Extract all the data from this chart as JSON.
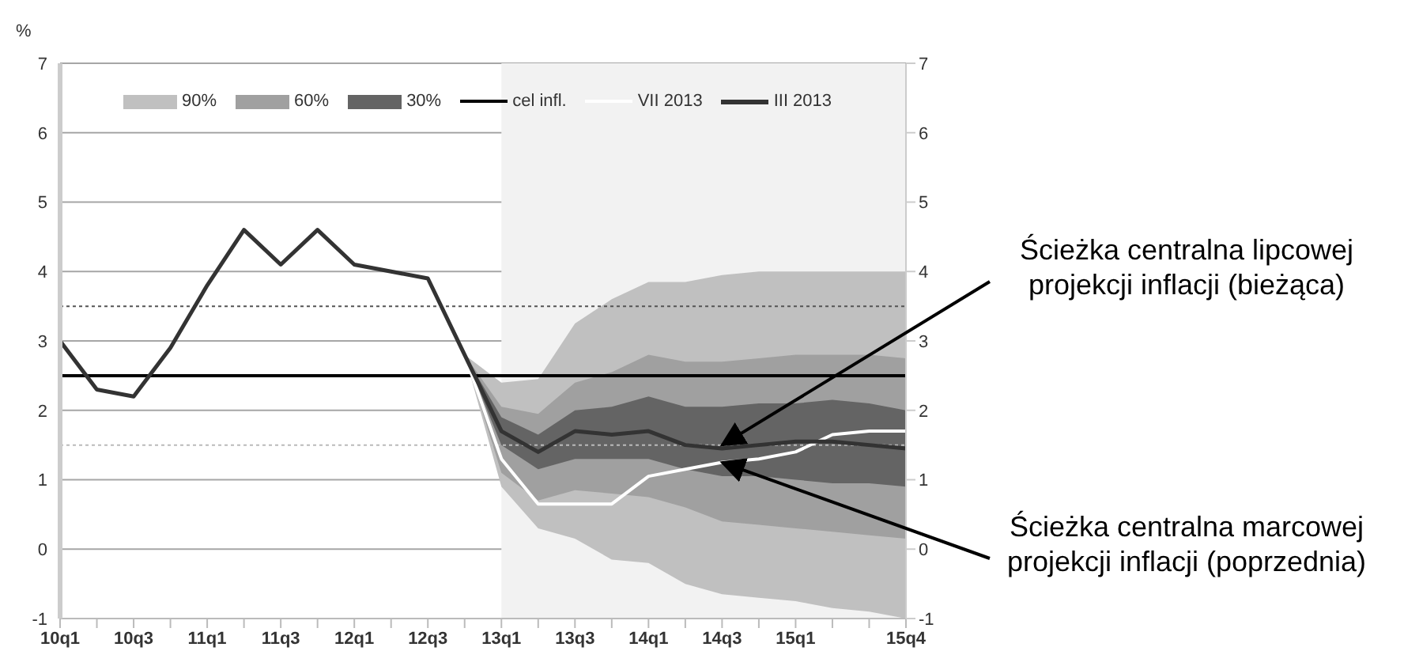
{
  "chart_data": {
    "type": "line",
    "ylabel": "%",
    "categories": [
      "10q1",
      null,
      "10q3",
      null,
      "11q1",
      null,
      "11q3",
      null,
      "12q1",
      null,
      "12q3",
      null,
      "13q1",
      null,
      "13q3",
      null,
      "14q1",
      null,
      "14q3",
      null,
      "15q1",
      null,
      null,
      "15q4"
    ],
    "series": [
      {
        "name": "90%",
        "type": "area",
        "color": "#c0c0c0",
        "values": [
          null,
          null,
          null,
          null,
          null,
          null,
          null,
          null,
          null,
          null,
          null,
          null,
          null,
          null,
          null,
          null,
          null,
          null,
          null,
          null,
          null,
          null,
          null,
          null
        ],
        "lower": [
          null,
          null,
          null,
          null,
          null,
          null,
          null,
          null,
          null,
          null,
          null,
          2.8,
          0.9,
          0.3,
          0.15,
          -0.15,
          -0.2,
          -0.5,
          -0.65,
          -0.7,
          -0.75,
          -0.85,
          -0.9,
          -1.0
        ],
        "upper": [
          null,
          null,
          null,
          null,
          null,
          null,
          null,
          null,
          null,
          null,
          null,
          2.8,
          2.4,
          2.45,
          3.25,
          3.6,
          3.85,
          3.85,
          3.95,
          4.0,
          4.0,
          4.0,
          4.0,
          4.0
        ]
      },
      {
        "name": "60%",
        "type": "area",
        "color": "#a0a0a0",
        "values": [
          null,
          null,
          null,
          null,
          null,
          null,
          null,
          null,
          null,
          null,
          null,
          null,
          null,
          null,
          null,
          null,
          null,
          null,
          null,
          null,
          null,
          null,
          null,
          null
        ],
        "lower": [
          null,
          null,
          null,
          null,
          null,
          null,
          null,
          null,
          null,
          null,
          null,
          2.8,
          1.1,
          0.7,
          0.85,
          0.8,
          0.75,
          0.6,
          0.4,
          0.35,
          0.3,
          0.25,
          0.2,
          0.15
        ],
        "upper": [
          null,
          null,
          null,
          null,
          null,
          null,
          null,
          null,
          null,
          null,
          null,
          2.8,
          2.05,
          1.95,
          2.4,
          2.55,
          2.8,
          2.7,
          2.7,
          2.75,
          2.8,
          2.8,
          2.8,
          2.75
        ]
      },
      {
        "name": "30%",
        "type": "area",
        "color": "#646464",
        "values": [
          null,
          null,
          null,
          null,
          null,
          null,
          null,
          null,
          null,
          null,
          null,
          null,
          null,
          null,
          null,
          null,
          null,
          null,
          null,
          null,
          null,
          null,
          null,
          null
        ],
        "lower": [
          null,
          null,
          null,
          null,
          null,
          null,
          null,
          null,
          null,
          null,
          null,
          2.8,
          1.5,
          1.15,
          1.3,
          1.3,
          1.3,
          1.15,
          1.05,
          1.05,
          1.0,
          0.95,
          0.95,
          0.9
        ],
        "upper": [
          null,
          null,
          null,
          null,
          null,
          null,
          null,
          null,
          null,
          null,
          null,
          2.8,
          1.9,
          1.65,
          2.0,
          2.05,
          2.2,
          2.05,
          2.05,
          2.1,
          2.1,
          2.15,
          2.1,
          2.0
        ]
      },
      {
        "name": "cel infl.",
        "color": "#000000",
        "values": [
          2.5,
          2.5,
          2.5,
          2.5,
          2.5,
          2.5,
          2.5,
          2.5,
          2.5,
          2.5,
          2.5,
          2.5,
          2.5,
          2.5,
          2.5,
          2.5,
          2.5,
          2.5,
          2.5,
          2.5,
          2.5,
          2.5,
          2.5,
          2.5
        ]
      },
      {
        "name": "VII 2013",
        "color": "#ffffff",
        "values": [
          null,
          null,
          null,
          null,
          null,
          null,
          null,
          null,
          null,
          null,
          null,
          2.8,
          1.3,
          0.65,
          0.65,
          0.65,
          1.05,
          1.15,
          1.25,
          1.3,
          1.4,
          1.65,
          1.7,
          1.7
        ]
      },
      {
        "name": "III 2013",
        "color": "#333333",
        "values": [
          3.0,
          2.3,
          2.2,
          2.9,
          3.8,
          4.6,
          4.1,
          4.6,
          4.1,
          4.0,
          3.9,
          2.8,
          1.7,
          1.4,
          1.7,
          1.65,
          1.7,
          1.5,
          1.45,
          1.5,
          1.55,
          1.55,
          1.5,
          1.45
        ]
      }
    ],
    "ylim": [
      -1,
      7
    ],
    "yticks": [
      -1,
      0,
      1,
      2,
      3,
      4,
      5,
      6,
      7
    ],
    "y2lim": [
      -1,
      7
    ],
    "y2ticks": [
      -1,
      0,
      1,
      2,
      3,
      4,
      5,
      6,
      7
    ],
    "ref_lines": [
      {
        "axis": "y",
        "value": 3.5,
        "color": "#555555",
        "line_style": "dotted"
      },
      {
        "axis": "y",
        "value": 1.5,
        "color": "#bbbbbb",
        "line_style": "dotted"
      }
    ],
    "bands": [
      {
        "axis": "x",
        "from": "13q1",
        "to": "15q4",
        "color": "#f2f2f2"
      }
    ],
    "annotations": [
      {
        "text": "Ścieżka centralna lipcowej projekcji inflacji (bieżąca)",
        "x": "14q3",
        "y": 1.5
      },
      {
        "text": "Ścieżka centralna marcowej projekcji inflacji (poprzednia)",
        "x": "14q3",
        "y": 1.25
      }
    ],
    "grid": "y",
    "legend": "top",
    "marker": "none"
  }
}
